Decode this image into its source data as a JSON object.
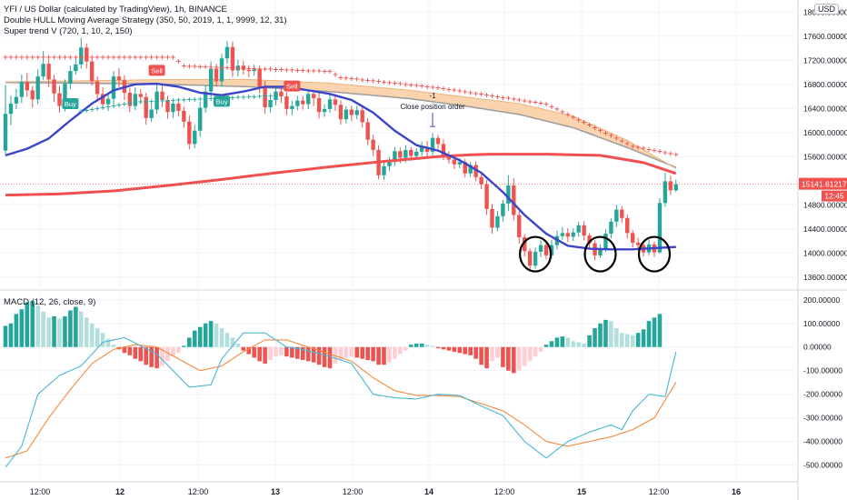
{
  "header": {
    "title": "YFI / US Dollar (calculated by TradingView), 1h, BINANCE",
    "strategy1": "Double HULL Moving Average Strategy (350, 50, 2019, 1, 1, 9999, 12, 31)",
    "strategy2": "Super trend V (720, 1, 10, 2, 150)",
    "macd_title": "MACD (12, 26, close, 9)",
    "currency_button": "USD"
  },
  "colors": {
    "up": "#26a69a",
    "down": "#ef5350",
    "hma_fast": "#3c45c8",
    "hma_slow": "#f05050",
    "band_fill": "#f7c99a",
    "band_gray": "#9c9c9c",
    "macd_line": "#47b6d6",
    "signal_line": "#f58a3c",
    "supertrend_down": "#ef5350",
    "supertrend_up": "#26a69a",
    "label_buy": "#26a69a",
    "label_sell": "#ef5350",
    "price_tag": "#ef5350",
    "circles": "#000000"
  },
  "chart_data": [
    {
      "type": "candlestick",
      "title": "YFI / US Dollar (calculated by TradingView), 1h, BINANCE",
      "ylim": [
        13400,
        18200
      ],
      "y_ticks": [
        "18000.00000",
        "17600.00000",
        "17200.00000",
        "16800.00000",
        "16400.00000",
        "16000.00000",
        "15600.00000",
        "14800.00000",
        "14400.00000",
        "14000.00000",
        "13600.00000"
      ],
      "x_ticks": [
        "12:00",
        "12",
        "12:00",
        "13",
        "12:00",
        "14",
        "12:00",
        "15",
        "12:00",
        "16"
      ],
      "last_price": "15141.61217",
      "countdown": "12:45",
      "candles": [
        [
          15700,
          16310,
          16790,
          15630
        ],
        [
          16310,
          16480,
          16610,
          16120
        ],
        [
          16480,
          16590,
          16730,
          16390
        ],
        [
          16590,
          16840,
          16960,
          16490
        ],
        [
          16840,
          16700,
          16990,
          16590
        ],
        [
          16700,
          16550,
          16770,
          16410
        ],
        [
          16550,
          16930,
          17050,
          16470
        ],
        [
          16930,
          17140,
          17350,
          16870
        ],
        [
          17140,
          16880,
          17210,
          16750
        ],
        [
          16880,
          16650,
          16960,
          16510
        ],
        [
          16650,
          16440,
          16770,
          16330
        ],
        [
          16440,
          16810,
          16880,
          16350
        ],
        [
          16810,
          17020,
          17110,
          16720
        ],
        [
          17020,
          17130,
          17230,
          16960
        ],
        [
          17130,
          17410,
          17570,
          17060
        ],
        [
          17410,
          17180,
          17480,
          17060
        ],
        [
          17180,
          16850,
          17230,
          16780
        ],
        [
          16850,
          16640,
          16930,
          16520
        ],
        [
          16640,
          16470,
          16750,
          16380
        ],
        [
          16470,
          16560,
          16640,
          16360
        ],
        [
          16560,
          16930,
          17020,
          16480
        ],
        [
          16930,
          16870,
          17070,
          16750
        ],
        [
          16870,
          16660,
          16950,
          16540
        ],
        [
          16660,
          16440,
          16740,
          16340
        ],
        [
          16440,
          16640,
          16750,
          16370
        ],
        [
          16640,
          16590,
          16720,
          16470
        ],
        [
          16590,
          16240,
          16660,
          16130
        ],
        [
          16240,
          16380,
          16490,
          16180
        ],
        [
          16380,
          16680,
          16790,
          16310
        ],
        [
          16680,
          16540,
          16780,
          16420
        ],
        [
          16540,
          16340,
          16610,
          16230
        ],
        [
          16340,
          16480,
          16560,
          16240
        ],
        [
          16480,
          16360,
          16560,
          16270
        ],
        [
          16360,
          16180,
          16430,
          16080
        ],
        [
          16180,
          15810,
          16290,
          15720
        ],
        [
          15810,
          16030,
          16130,
          15740
        ],
        [
          16030,
          16410,
          16510,
          15930
        ],
        [
          16410,
          16680,
          16790,
          16330
        ],
        [
          16680,
          17060,
          17180,
          16590
        ],
        [
          17060,
          16850,
          17140,
          16760
        ],
        [
          16850,
          17230,
          17310,
          16760
        ],
        [
          17230,
          17420,
          17520,
          17140
        ],
        [
          17420,
          17030,
          17510,
          16920
        ],
        [
          17030,
          17110,
          17210,
          16930
        ],
        [
          17110,
          17040,
          17190,
          16960
        ],
        [
          17040,
          17020,
          17120,
          16920
        ],
        [
          17020,
          17050,
          17130,
          16940
        ],
        [
          17050,
          16760,
          17110,
          16650
        ],
        [
          16760,
          16420,
          16860,
          16310
        ],
        [
          16420,
          16540,
          16610,
          16330
        ],
        [
          16540,
          16680,
          16770,
          16450
        ],
        [
          16680,
          16600,
          16760,
          16490
        ],
        [
          16600,
          16390,
          16670,
          16290
        ],
        [
          16390,
          16440,
          16530,
          16290
        ],
        [
          16440,
          16530,
          16610,
          16370
        ],
        [
          16530,
          16470,
          16610,
          16380
        ],
        [
          16470,
          16640,
          16720,
          16390
        ],
        [
          16640,
          16570,
          16700,
          16440
        ],
        [
          16570,
          16340,
          16660,
          16230
        ],
        [
          16340,
          16390,
          16470,
          16260
        ],
        [
          16390,
          16550,
          16630,
          16330
        ],
        [
          16550,
          16460,
          16640,
          16360
        ],
        [
          16460,
          16220,
          16530,
          16130
        ],
        [
          16220,
          16380,
          16440,
          16150
        ],
        [
          16380,
          16290,
          16440,
          16190
        ],
        [
          16290,
          16370,
          16440,
          16220
        ],
        [
          16370,
          16170,
          16440,
          16080
        ],
        [
          16170,
          15880,
          16240,
          15790
        ],
        [
          15880,
          15710,
          15960,
          15610
        ],
        [
          15710,
          15290,
          15790,
          15220
        ],
        [
          15290,
          15440,
          15510,
          15210
        ],
        [
          15440,
          15510,
          15590,
          15360
        ],
        [
          15510,
          15690,
          15760,
          15440
        ],
        [
          15690,
          15580,
          15750,
          15490
        ],
        [
          15580,
          15710,
          15790,
          15500
        ],
        [
          15710,
          15610,
          15760,
          15530
        ],
        [
          15610,
          15680,
          15740,
          15560
        ],
        [
          15680,
          15760,
          15850,
          15610
        ],
        [
          15760,
          15680,
          15860,
          15600
        ],
        [
          15680,
          15910,
          15990,
          15620
        ],
        [
          15910,
          15810,
          15960,
          15730
        ],
        [
          15810,
          15620,
          15890,
          15540
        ],
        [
          15620,
          15550,
          15690,
          15480
        ],
        [
          15550,
          15470,
          15620,
          15390
        ],
        [
          15470,
          15510,
          15570,
          15410
        ],
        [
          15510,
          15320,
          15560,
          15250
        ],
        [
          15320,
          15460,
          15510,
          15260
        ],
        [
          15460,
          15260,
          15520,
          15190
        ],
        [
          15260,
          15140,
          15310,
          15060
        ],
        [
          15140,
          14730,
          15210,
          14630
        ],
        [
          14730,
          14420,
          14810,
          14320
        ],
        [
          14420,
          14610,
          14700,
          14360
        ],
        [
          14610,
          14820,
          14880,
          14520
        ],
        [
          14820,
          15120,
          15290,
          14700
        ],
        [
          15120,
          14630,
          15240,
          14540
        ],
        [
          14630,
          14260,
          14700,
          14150
        ],
        [
          14260,
          14030,
          14310,
          13940
        ],
        [
          14030,
          13790,
          14080,
          13690
        ],
        [
          13790,
          14020,
          14090,
          13740
        ],
        [
          14020,
          14130,
          14210,
          13930
        ],
        [
          14130,
          13960,
          14190,
          13890
        ],
        [
          13960,
          14130,
          14220,
          13910
        ],
        [
          14130,
          14280,
          14370,
          14060
        ],
        [
          14280,
          14330,
          14430,
          14220
        ],
        [
          14330,
          14270,
          14410,
          14180
        ],
        [
          14270,
          14340,
          14410,
          14200
        ],
        [
          14340,
          14460,
          14520,
          14270
        ],
        [
          14460,
          14290,
          14530,
          14210
        ],
        [
          14290,
          14160,
          14330,
          14060
        ],
        [
          14160,
          13960,
          14210,
          13880
        ],
        [
          13960,
          14080,
          14140,
          13920
        ],
        [
          14080,
          14320,
          14390,
          14020
        ],
        [
          14320,
          14520,
          14580,
          14240
        ],
        [
          14520,
          14720,
          14800,
          14430
        ],
        [
          14720,
          14580,
          14780,
          14500
        ],
        [
          14580,
          14330,
          14640,
          14240
        ],
        [
          14330,
          14170,
          14380,
          14090
        ],
        [
          14170,
          14130,
          14250,
          14050
        ],
        [
          14130,
          14010,
          14180,
          13940
        ],
        [
          14010,
          14140,
          14220,
          13960
        ],
        [
          14140,
          14010,
          14190,
          13930
        ],
        [
          14010,
          14830,
          14910,
          13990
        ],
        [
          14830,
          15190,
          15330,
          14770
        ],
        [
          15190,
          15040,
          15280,
          14960
        ],
        [
          15040,
          15140,
          15220,
          15010
        ]
      ],
      "hma_fast": [
        [
          0,
          15620
        ],
        [
          4,
          15730
        ],
        [
          8,
          15900
        ],
        [
          12,
          16200
        ],
        [
          16,
          16480
        ],
        [
          20,
          16700
        ],
        [
          24,
          16800
        ],
        [
          28,
          16810
        ],
        [
          32,
          16760
        ],
        [
          36,
          16660
        ],
        [
          40,
          16620
        ],
        [
          44,
          16680
        ],
        [
          48,
          16760
        ],
        [
          52,
          16760
        ],
        [
          56,
          16700
        ],
        [
          60,
          16640
        ],
        [
          64,
          16540
        ],
        [
          68,
          16330
        ],
        [
          72,
          16030
        ],
        [
          76,
          15790
        ],
        [
          80,
          15700
        ],
        [
          84,
          15540
        ],
        [
          88,
          15330
        ],
        [
          92,
          15010
        ],
        [
          96,
          14630
        ],
        [
          100,
          14320
        ],
        [
          104,
          14120
        ],
        [
          108,
          14070
        ],
        [
          112,
          14060
        ],
        [
          116,
          14060
        ],
        [
          120,
          14080
        ],
        [
          124,
          14100
        ]
      ],
      "hma_slow": [
        [
          0,
          14960
        ],
        [
          10,
          14980
        ],
        [
          20,
          15030
        ],
        [
          30,
          15120
        ],
        [
          40,
          15220
        ],
        [
          50,
          15330
        ],
        [
          60,
          15430
        ],
        [
          70,
          15520
        ],
        [
          80,
          15600
        ],
        [
          86,
          15630
        ],
        [
          90,
          15640
        ],
        [
          100,
          15640
        ],
        [
          110,
          15620
        ],
        [
          118,
          15500
        ],
        [
          124,
          15320
        ]
      ],
      "band_upper": [
        [
          0,
          16830
        ],
        [
          15,
          16820
        ],
        [
          30,
          16800
        ],
        [
          45,
          16760
        ],
        [
          60,
          16680
        ],
        [
          75,
          16560
        ],
        [
          85,
          16440
        ],
        [
          95,
          16300
        ],
        [
          105,
          16080
        ],
        [
          115,
          15750
        ],
        [
          124,
          15420
        ]
      ],
      "band_lower": [
        [
          0,
          16840
        ],
        [
          15,
          16860
        ],
        [
          30,
          16880
        ],
        [
          45,
          16880
        ],
        [
          60,
          16820
        ],
        [
          75,
          16700
        ],
        [
          85,
          16590
        ],
        [
          95,
          16480
        ],
        [
          105,
          16270
        ],
        [
          115,
          15870
        ],
        [
          124,
          15400
        ]
      ],
      "supertrend_down": [
        [
          0,
          17260
        ],
        [
          31,
          17260
        ],
        [
          33,
          17110
        ],
        [
          60,
          17020
        ],
        [
          62,
          16920
        ],
        [
          80,
          16750
        ],
        [
          100,
          16480
        ],
        [
          116,
          15780
        ],
        [
          124,
          15640
        ]
      ],
      "supertrend_up": [
        [
          14,
          16360
        ],
        [
          24,
          16510
        ],
        [
          38,
          16570
        ],
        [
          50,
          16620
        ]
      ],
      "signals": [
        {
          "type": "buy",
          "label": "Buy",
          "at": 12
        },
        {
          "type": "sell",
          "label": "Sell",
          "at": 28
        },
        {
          "type": "buy",
          "label": "Buy",
          "at": 40
        },
        {
          "type": "sell",
          "label": "Sell",
          "at": 53
        }
      ],
      "annotations": [
        {
          "text": "-1",
          "at": 79
        },
        {
          "text": "Close position order",
          "at": 79
        }
      ],
      "circled": [
        98,
        110,
        120
      ]
    },
    {
      "type": "macd",
      "title": "MACD (12, 26, close, 9)",
      "ylim": [
        -540,
        230
      ],
      "y_ticks": [
        "200.00000",
        "100.00000",
        "0.00000",
        "-100.00000",
        "-200.00000",
        "-300.00000",
        "-400.00000",
        "-500.00000"
      ],
      "histogram": [
        90,
        100,
        140,
        160,
        190,
        195,
        175,
        150,
        125,
        130,
        120,
        130,
        155,
        170,
        150,
        125,
        100,
        80,
        60,
        35,
        10,
        -10,
        -25,
        -35,
        -50,
        -60,
        -75,
        -85,
        -90,
        -80,
        -60,
        -40,
        -25,
        5,
        40,
        70,
        85,
        100,
        110,
        100,
        80,
        60,
        40,
        15,
        -15,
        -30,
        -45,
        -60,
        -70,
        -55,
        -40,
        -35,
        -40,
        -45,
        -50,
        -55,
        -60,
        -65,
        -75,
        -85,
        -90,
        -70,
        -55,
        -45,
        -40,
        -45,
        -50,
        -55,
        -60,
        -75,
        -75,
        -65,
        -50,
        -30,
        -15,
        10,
        15,
        15,
        10,
        5,
        -5,
        -10,
        -15,
        -20,
        -25,
        -30,
        -35,
        -50,
        -75,
        -90,
        -60,
        -45,
        -85,
        -100,
        -110,
        -100,
        -80,
        -60,
        -40,
        -20,
        10,
        25,
        40,
        45,
        40,
        25,
        20,
        15,
        50,
        80,
        100,
        115,
        110,
        80,
        60,
        55,
        50,
        60,
        75,
        110,
        125,
        140
      ]
    }
  ]
}
